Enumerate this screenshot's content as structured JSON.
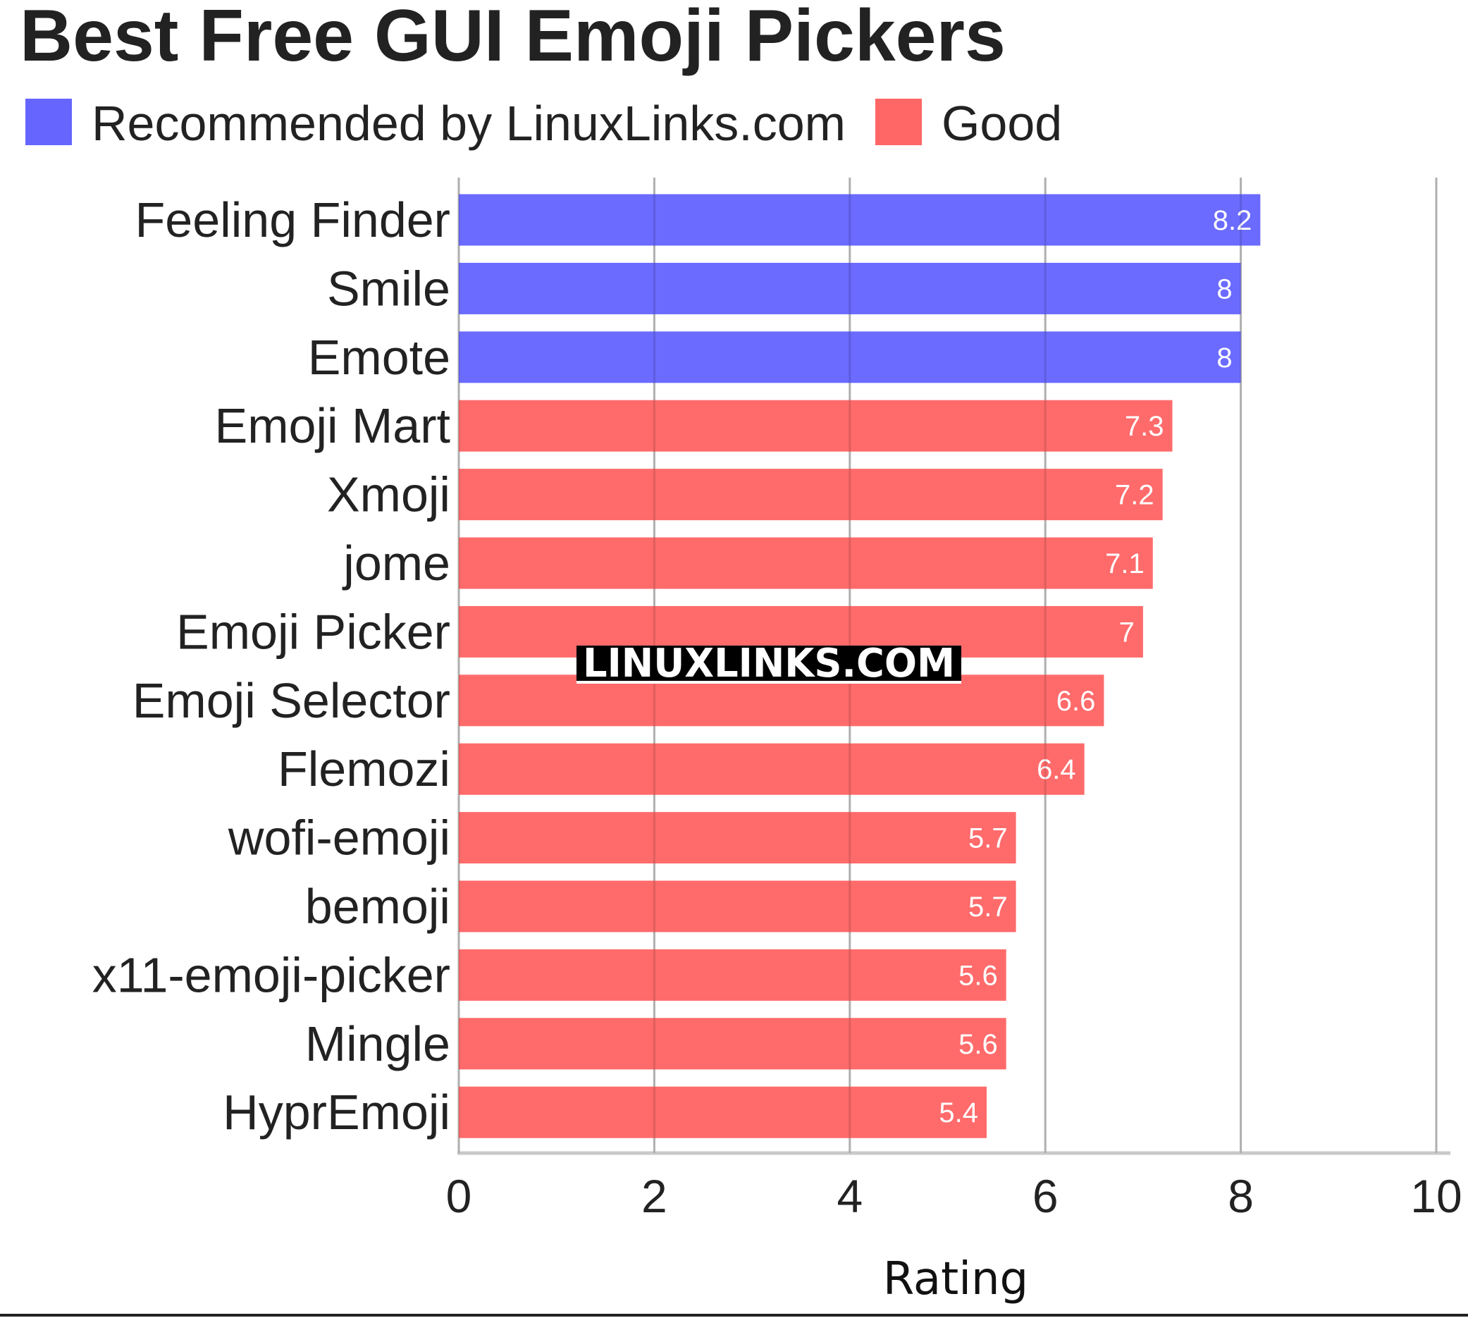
{
  "chart_data": {
    "type": "bar",
    "orientation": "horizontal",
    "title": "Best Free GUI Emoji Pickers",
    "xlabel": "Rating",
    "ylabel": "",
    "xlim": [
      0,
      10
    ],
    "xticks": [
      0,
      2,
      4,
      6,
      8,
      10
    ],
    "grid": true,
    "legend_placement": "top-left",
    "legend": [
      {
        "name": "Recommended by LinuxLinks.com",
        "color": "#6666ff"
      },
      {
        "name": "Good",
        "color": "#ff6666"
      }
    ],
    "categories": [
      "Feeling Finder",
      "Smile",
      "Emote",
      "Emoji Mart",
      "Xmoji",
      "jome",
      "Emoji Picker",
      "Emoji Selector",
      "Flemozi",
      "wofi-emoji",
      "bemoji",
      "x11-emoji-picker",
      "Mingle",
      "HyprEmoji"
    ],
    "values": [
      8.2,
      8,
      8,
      7.3,
      7.2,
      7.1,
      7,
      6.6,
      6.4,
      5.7,
      5.7,
      5.6,
      5.6,
      5.4
    ],
    "groups": [
      "Recommended by LinuxLinks.com",
      "Recommended by LinuxLinks.com",
      "Recommended by LinuxLinks.com",
      "Good",
      "Good",
      "Good",
      "Good",
      "Good",
      "Good",
      "Good",
      "Good",
      "Good",
      "Good",
      "Good"
    ],
    "watermark": "LINUXLINKS.COM"
  }
}
